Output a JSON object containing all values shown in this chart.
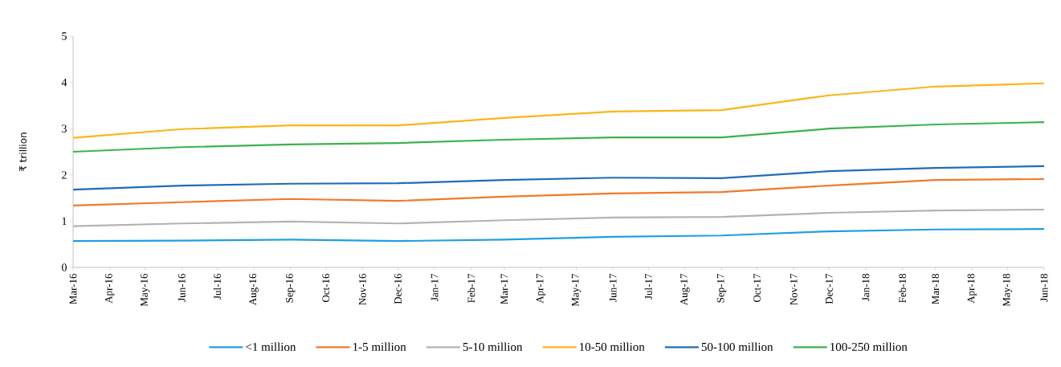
{
  "chart_data": {
    "type": "line",
    "ylabel": "₹ trillion",
    "x": [
      "2016-03",
      "2016-06",
      "2016-09",
      "2016-12",
      "2017-03",
      "2017-06",
      "2017-09",
      "2017-12",
      "2018-03",
      "2018-06"
    ],
    "series": [
      {
        "name": "<1 million",
        "color": "#1ea0e0",
        "values": [
          0.57,
          0.58,
          0.6,
          0.57,
          0.6,
          0.66,
          0.69,
          0.78,
          0.82,
          0.83
        ]
      },
      {
        "name": "1-5 million",
        "color": "#f07a2a",
        "values": [
          1.34,
          1.41,
          1.48,
          1.44,
          1.53,
          1.6,
          1.63,
          1.77,
          1.89,
          1.91
        ]
      },
      {
        "name": "5-10 million",
        "color": "#b3b3b3",
        "values": [
          0.89,
          0.95,
          0.99,
          0.95,
          1.02,
          1.08,
          1.09,
          1.18,
          1.23,
          1.25
        ]
      },
      {
        "name": "10-50 million",
        "color": "#fbb616",
        "values": [
          2.8,
          2.99,
          3.07,
          3.07,
          3.23,
          3.37,
          3.4,
          3.72,
          3.91,
          3.98
        ]
      },
      {
        "name": "50-100 million",
        "color": "#1f6db5",
        "values": [
          1.68,
          1.77,
          1.81,
          1.82,
          1.89,
          1.94,
          1.93,
          2.08,
          2.15,
          2.19
        ]
      },
      {
        "name": "100-250 million",
        "color": "#3cb34a",
        "values": [
          2.5,
          2.6,
          2.66,
          2.69,
          2.76,
          2.81,
          2.81,
          3.0,
          3.09,
          3.14
        ]
      }
    ],
    "xlim": [
      "2016-03",
      "2018-06"
    ],
    "xticks": [
      {
        "value": "2016-03",
        "label": "Mar-16"
      },
      {
        "value": "2016-04",
        "label": "Apr-16"
      },
      {
        "value": "2016-05",
        "label": "May-16"
      },
      {
        "value": "2016-06",
        "label": "Jun-16"
      },
      {
        "value": "2016-07",
        "label": "Jul-16"
      },
      {
        "value": "2016-08",
        "label": "Aug-16"
      },
      {
        "value": "2016-09",
        "label": "Sep-16"
      },
      {
        "value": "2016-10",
        "label": "Oct-16"
      },
      {
        "value": "2016-11",
        "label": "Nov-16"
      },
      {
        "value": "2016-12",
        "label": "Dec-16"
      },
      {
        "value": "2017-01",
        "label": "Jan-17"
      },
      {
        "value": "2017-02",
        "label": "Feb-17"
      },
      {
        "value": "2017-03",
        "label": "Mar-17"
      },
      {
        "value": "2017-04",
        "label": "Apr-17"
      },
      {
        "value": "2017-05",
        "label": "May-17"
      },
      {
        "value": "2017-06",
        "label": "Jun-17"
      },
      {
        "value": "2017-07",
        "label": "Jul-17"
      },
      {
        "value": "2017-08",
        "label": "Aug-17"
      },
      {
        "value": "2017-09",
        "label": "Sep-17"
      },
      {
        "value": "2017-10",
        "label": "Oct-17"
      },
      {
        "value": "2017-11",
        "label": "Nov-17"
      },
      {
        "value": "2017-12",
        "label": "Dec-17"
      },
      {
        "value": "2018-01",
        "label": "Jan-18"
      },
      {
        "value": "2018-02",
        "label": "Feb-18"
      },
      {
        "value": "2018-03",
        "label": "Mar-18"
      },
      {
        "value": "2018-04",
        "label": "Apr-18"
      },
      {
        "value": "2018-05",
        "label": "May-18"
      },
      {
        "value": "2018-06",
        "label": "Jun-18"
      }
    ],
    "ylim": [
      0,
      5
    ],
    "yticks": [
      0,
      1,
      2,
      3,
      4,
      5
    ],
    "grid": false,
    "legend": "bottom",
    "marker": "none",
    "line_style": "solid"
  }
}
